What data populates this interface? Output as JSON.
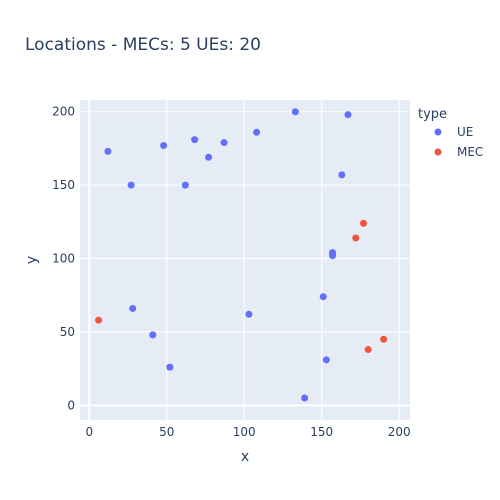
{
  "chart_data": {
    "type": "scatter",
    "title": "Locations - MECs: 5 UEs: 20",
    "xlabel": "x",
    "ylabel": "y",
    "xlim": [
      -6,
      207
    ],
    "ylim": [
      -10,
      208
    ],
    "xticks": [
      0,
      50,
      100,
      150,
      200
    ],
    "yticks": [
      0,
      50,
      100,
      150,
      200
    ],
    "grid": true,
    "legend": {
      "title": "type",
      "placement": "right"
    },
    "series": [
      {
        "name": "UE",
        "color": "#636efa",
        "points": [
          [
            12,
            173
          ],
          [
            27,
            150
          ],
          [
            28,
            66
          ],
          [
            41,
            48
          ],
          [
            48,
            177
          ],
          [
            52,
            26
          ],
          [
            62,
            150
          ],
          [
            68,
            181
          ],
          [
            77,
            169
          ],
          [
            87,
            179
          ],
          [
            103,
            62
          ],
          [
            108,
            186
          ],
          [
            133,
            200
          ],
          [
            139,
            5
          ],
          [
            151,
            74
          ],
          [
            153,
            31
          ],
          [
            157,
            104
          ],
          [
            157,
            102
          ],
          [
            163,
            157
          ],
          [
            167,
            198
          ]
        ]
      },
      {
        "name": "MEC",
        "color": "#ef553b",
        "points": [
          [
            6,
            58
          ],
          [
            172,
            114
          ],
          [
            177,
            124
          ],
          [
            180,
            38
          ],
          [
            190,
            45
          ]
        ]
      }
    ]
  }
}
